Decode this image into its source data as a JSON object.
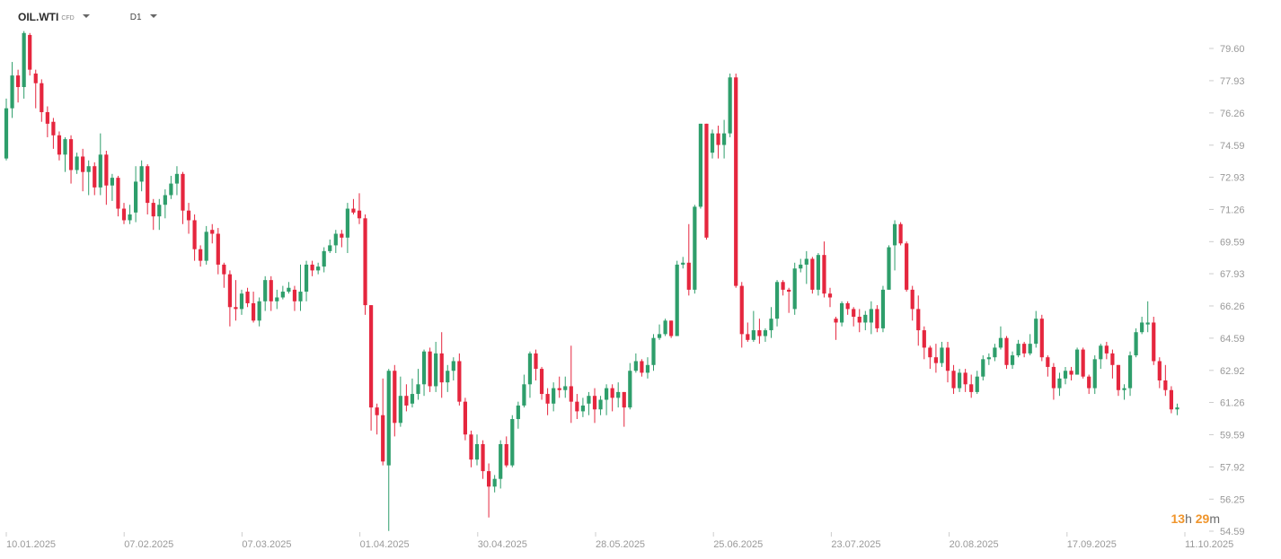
{
  "header": {
    "symbol": "OIL.WTI",
    "symbol_type": "CFD",
    "timeframe": "D1"
  },
  "countdown": {
    "hours": "13",
    "hours_unit": "h",
    "minutes": "29",
    "minutes_unit": "m"
  },
  "colors": {
    "up": "#2e9e6b",
    "down": "#e5263e",
    "axis_text": "#999999"
  },
  "chart_data": {
    "type": "candlestick",
    "y_ticks": [
      "79.60",
      "77.93",
      "76.26",
      "74.59",
      "72.93",
      "71.26",
      "69.59",
      "67.93",
      "66.26",
      "64.59",
      "62.92",
      "61.26",
      "59.59",
      "57.92",
      "56.25",
      "54.59"
    ],
    "x_ticks": [
      "10.01.2025",
      "07.02.2025",
      "07.03.2025",
      "01.04.2025",
      "30.04.2025",
      "28.05.2025",
      "25.06.2025",
      "23.07.2025",
      "20.08.2025",
      "17.09.2025",
      "11.10.2025"
    ],
    "ylim": [
      54.59,
      79.6
    ],
    "candles": [
      [
        73.9,
        76.5,
        73.8,
        77.0
      ],
      [
        76.5,
        78.2,
        76.0,
        78.9
      ],
      [
        78.2,
        77.6,
        76.8,
        78.5
      ],
      [
        77.6,
        80.4,
        77.0,
        80.5
      ],
      [
        80.3,
        78.5,
        78.2,
        80.4
      ],
      [
        78.3,
        77.8,
        76.5,
        78.5
      ],
      [
        77.8,
        76.3,
        75.8,
        78.0
      ],
      [
        76.3,
        75.7,
        75.0,
        76.6
      ],
      [
        75.8,
        75.1,
        74.4,
        76.0
      ],
      [
        75.1,
        74.1,
        73.8,
        75.3
      ],
      [
        74.1,
        74.9,
        73.2,
        75.0
      ],
      [
        74.9,
        73.3,
        72.6,
        75.1
      ],
      [
        73.3,
        74.0,
        73.1,
        74.2
      ],
      [
        74.0,
        73.2,
        72.2,
        74.4
      ],
      [
        73.2,
        73.5,
        72.0,
        73.8
      ],
      [
        73.5,
        72.4,
        72.0,
        73.7
      ],
      [
        72.4,
        74.1,
        72.0,
        75.2
      ],
      [
        74.1,
        72.5,
        71.5,
        74.3
      ],
      [
        72.5,
        72.9,
        71.7,
        73.1
      ],
      [
        72.9,
        71.3,
        70.9,
        73.0
      ],
      [
        71.3,
        70.7,
        70.5,
        71.6
      ],
      [
        70.7,
        71.0,
        70.5,
        71.5
      ],
      [
        71.1,
        72.7,
        70.6,
        73.5
      ],
      [
        72.7,
        73.5,
        72.2,
        73.8
      ],
      [
        73.5,
        71.6,
        71.0,
        73.6
      ],
      [
        71.6,
        70.9,
        70.2,
        71.8
      ],
      [
        70.9,
        71.5,
        70.2,
        71.8
      ],
      [
        71.5,
        72.0,
        70.8,
        72.3
      ],
      [
        72.0,
        72.6,
        71.8,
        73.0
      ],
      [
        72.6,
        73.1,
        72.0,
        73.5
      ],
      [
        73.1,
        71.2,
        70.5,
        73.2
      ],
      [
        71.2,
        70.7,
        70.0,
        71.6
      ],
      [
        70.7,
        69.2,
        68.6,
        71.0
      ],
      [
        69.2,
        68.6,
        68.3,
        69.4
      ],
      [
        68.6,
        70.1,
        68.4,
        70.4
      ],
      [
        70.2,
        70.0,
        69.5,
        70.5
      ],
      [
        70.0,
        68.4,
        67.9,
        70.3
      ],
      [
        68.4,
        67.9,
        67.2,
        68.5
      ],
      [
        67.9,
        66.2,
        65.2,
        68.1
      ],
      [
        66.2,
        66.1,
        65.5,
        67.6
      ],
      [
        66.1,
        66.9,
        65.8,
        67.1
      ],
      [
        67.0,
        66.4,
        66.2,
        67.2
      ],
      [
        66.4,
        65.5,
        65.4,
        67.0
      ],
      [
        65.5,
        66.5,
        65.2,
        66.7
      ],
      [
        66.5,
        67.6,
        66.0,
        67.8
      ],
      [
        67.6,
        66.5,
        66.0,
        67.8
      ],
      [
        66.5,
        66.7,
        66.1,
        67.1
      ],
      [
        66.7,
        67.0,
        66.6,
        67.3
      ],
      [
        67.0,
        67.2,
        66.9,
        67.5
      ],
      [
        67.1,
        66.5,
        66.0,
        67.3
      ],
      [
        66.5,
        67.0,
        66.0,
        68.4
      ],
      [
        67.0,
        68.4,
        66.5,
        68.6
      ],
      [
        68.4,
        68.1,
        67.8,
        68.6
      ],
      [
        68.1,
        68.3,
        67.9,
        68.5
      ],
      [
        68.3,
        69.1,
        68.0,
        69.3
      ],
      [
        69.1,
        69.4,
        69.0,
        69.7
      ],
      [
        69.4,
        70.0,
        69.0,
        70.2
      ],
      [
        70.0,
        69.8,
        69.3,
        70.2
      ],
      [
        69.8,
        71.3,
        69.0,
        71.6
      ],
      [
        71.3,
        71.1,
        71.0,
        71.8
      ],
      [
        71.2,
        70.8,
        70.5,
        72.1
      ],
      [
        70.8,
        66.3,
        65.8,
        71.0
      ],
      [
        66.3,
        61.0,
        59.8,
        66.3
      ],
      [
        61.0,
        60.6,
        59.6,
        61.2
      ],
      [
        60.6,
        58.2,
        58.0,
        62.5
      ],
      [
        58.0,
        62.9,
        54.6,
        63.0
      ],
      [
        62.9,
        60.2,
        59.5,
        63.2
      ],
      [
        60.2,
        61.6,
        60.0,
        62.6
      ],
      [
        61.6,
        61.1,
        60.8,
        62.2
      ],
      [
        61.2,
        61.7,
        61.0,
        62.5
      ],
      [
        61.7,
        62.2,
        61.4,
        63.0
      ],
      [
        62.2,
        63.9,
        61.6,
        64.0
      ],
      [
        63.9,
        62.1,
        61.8,
        64.1
      ],
      [
        62.1,
        63.8,
        61.8,
        64.4
      ],
      [
        63.8,
        62.3,
        61.5,
        64.9
      ],
      [
        62.3,
        62.9,
        61.8,
        63.2
      ],
      [
        62.9,
        63.4,
        62.4,
        63.6
      ],
      [
        63.4,
        61.3,
        61.1,
        63.8
      ],
      [
        61.3,
        59.6,
        59.3,
        61.5
      ],
      [
        59.6,
        58.3,
        57.9,
        59.8
      ],
      [
        58.3,
        59.1,
        58.0,
        59.6
      ],
      [
        59.1,
        57.7,
        57.3,
        59.3
      ],
      [
        57.7,
        56.9,
        55.3,
        58.1
      ],
      [
        56.9,
        57.3,
        56.6,
        57.5
      ],
      [
        57.3,
        59.1,
        56.8,
        59.3
      ],
      [
        59.1,
        58.0,
        57.9,
        59.5
      ],
      [
        58.0,
        60.4,
        57.9,
        60.6
      ],
      [
        60.4,
        61.1,
        59.9,
        61.3
      ],
      [
        61.1,
        62.2,
        61.0,
        62.7
      ],
      [
        62.2,
        63.8,
        61.5,
        63.9
      ],
      [
        63.8,
        63.0,
        62.4,
        64.0
      ],
      [
        63.0,
        61.7,
        61.4,
        63.1
      ],
      [
        61.7,
        61.2,
        60.6,
        62.0
      ],
      [
        61.2,
        62.0,
        60.8,
        62.3
      ],
      [
        62.0,
        61.9,
        61.5,
        62.6
      ],
      [
        61.9,
        62.1,
        61.5,
        62.6
      ],
      [
        62.1,
        61.3,
        60.2,
        64.2
      ],
      [
        61.3,
        60.8,
        60.4,
        61.7
      ],
      [
        60.8,
        61.1,
        60.5,
        61.5
      ],
      [
        61.2,
        61.6,
        60.6,
        61.8
      ],
      [
        61.6,
        60.9,
        60.2,
        62.0
      ],
      [
        60.9,
        61.4,
        60.6,
        61.6
      ],
      [
        61.4,
        62.0,
        60.6,
        62.2
      ],
      [
        62.0,
        61.5,
        60.8,
        62.2
      ],
      [
        61.5,
        61.8,
        61.0,
        62.3
      ],
      [
        61.8,
        61.0,
        60.0,
        61.8
      ],
      [
        61.0,
        62.9,
        60.9,
        63.3
      ],
      [
        62.9,
        63.4,
        62.8,
        63.8
      ],
      [
        63.4,
        62.8,
        62.6,
        63.5
      ],
      [
        62.8,
        63.2,
        62.5,
        63.6
      ],
      [
        63.2,
        64.6,
        62.9,
        64.8
      ],
      [
        64.6,
        64.8,
        64.5,
        65.3
      ],
      [
        64.8,
        65.5,
        64.7,
        65.6
      ],
      [
        65.5,
        64.7,
        64.6,
        65.5
      ],
      [
        64.7,
        68.4,
        64.7,
        68.6
      ],
      [
        68.4,
        68.5,
        68.2,
        68.8
      ],
      [
        68.5,
        67.1,
        66.8,
        70.5
      ],
      [
        67.1,
        71.4,
        66.9,
        71.5
      ],
      [
        71.4,
        75.7,
        71.3,
        75.7
      ],
      [
        75.7,
        69.8,
        69.7,
        75.7
      ],
      [
        74.2,
        75.2,
        73.9,
        75.4
      ],
      [
        75.2,
        74.6,
        73.9,
        75.6
      ],
      [
        74.6,
        75.2,
        73.9,
        75.9
      ],
      [
        75.2,
        78.1,
        75.0,
        78.3
      ],
      [
        78.1,
        67.3,
        67.2,
        78.3
      ],
      [
        67.3,
        64.8,
        64.1,
        67.5
      ],
      [
        64.8,
        64.5,
        64.4,
        65.4
      ],
      [
        64.5,
        65.0,
        64.4,
        66.0
      ],
      [
        65.0,
        64.7,
        64.3,
        65.6
      ],
      [
        64.7,
        65.0,
        64.4,
        65.1
      ],
      [
        65.0,
        65.6,
        64.6,
        66.2
      ],
      [
        65.6,
        67.5,
        65.2,
        67.6
      ],
      [
        67.5,
        67.1,
        66.8,
        67.6
      ],
      [
        67.1,
        67.0,
        65.9,
        67.2
      ],
      [
        66.1,
        68.2,
        65.8,
        68.5
      ],
      [
        68.2,
        68.4,
        68.0,
        68.7
      ],
      [
        68.4,
        68.7,
        67.4,
        69.1
      ],
      [
        68.7,
        67.1,
        66.9,
        68.8
      ],
      [
        67.1,
        68.9,
        66.8,
        69.0
      ],
      [
        68.9,
        66.9,
        66.7,
        69.6
      ],
      [
        66.9,
        66.7,
        66.2,
        67.2
      ],
      [
        65.6,
        65.4,
        64.5,
        65.7
      ],
      [
        65.4,
        66.4,
        65.2,
        66.5
      ],
      [
        66.4,
        66.1,
        65.8,
        66.5
      ],
      [
        66.1,
        65.7,
        65.2,
        66.2
      ],
      [
        65.7,
        65.4,
        64.9,
        66.1
      ],
      [
        65.4,
        65.8,
        65.0,
        66.0
      ],
      [
        65.4,
        66.1,
        64.8,
        66.5
      ],
      [
        66.1,
        65.1,
        64.9,
        66.3
      ],
      [
        65.1,
        67.1,
        64.9,
        67.3
      ],
      [
        67.1,
        69.3,
        67.1,
        69.4
      ],
      [
        69.4,
        70.5,
        68.1,
        70.7
      ],
      [
        70.5,
        69.5,
        69.4,
        70.6
      ],
      [
        69.5,
        67.1,
        67.0,
        69.6
      ],
      [
        67.1,
        66.1,
        65.5,
        67.3
      ],
      [
        66.1,
        65.0,
        64.2,
        66.8
      ],
      [
        65.0,
        64.1,
        63.5,
        65.2
      ],
      [
        64.1,
        63.6,
        63.0,
        64.2
      ],
      [
        63.6,
        63.3,
        62.8,
        64.3
      ],
      [
        63.3,
        64.1,
        63.1,
        64.4
      ],
      [
        64.1,
        62.9,
        62.3,
        64.4
      ],
      [
        62.9,
        62.0,
        61.7,
        63.2
      ],
      [
        62.0,
        62.8,
        61.8,
        63.0
      ],
      [
        62.8,
        62.2,
        61.8,
        63.0
      ],
      [
        62.2,
        61.8,
        61.5,
        62.7
      ],
      [
        61.8,
        62.6,
        61.7,
        62.9
      ],
      [
        62.6,
        63.5,
        62.4,
        63.7
      ],
      [
        63.5,
        63.6,
        63.2,
        63.8
      ],
      [
        63.6,
        64.1,
        63.4,
        64.3
      ],
      [
        64.1,
        64.6,
        64.0,
        65.2
      ],
      [
        64.6,
        63.2,
        63.0,
        64.7
      ],
      [
        63.2,
        63.7,
        63.0,
        63.9
      ],
      [
        63.7,
        64.3,
        63.6,
        64.5
      ],
      [
        64.3,
        63.8,
        63.6,
        64.4
      ],
      [
        63.8,
        64.3,
        63.7,
        64.8
      ],
      [
        64.3,
        65.6,
        64.1,
        66.0
      ],
      [
        65.6,
        63.6,
        63.4,
        65.8
      ],
      [
        63.6,
        63.1,
        62.6,
        63.7
      ],
      [
        63.1,
        62.0,
        61.4,
        63.3
      ],
      [
        62.0,
        62.5,
        61.6,
        62.8
      ],
      [
        62.5,
        62.9,
        62.2,
        63.1
      ],
      [
        62.9,
        62.7,
        62.4,
        63.1
      ],
      [
        62.7,
        64.0,
        62.7,
        64.1
      ],
      [
        64.0,
        62.6,
        62.5,
        64.1
      ],
      [
        62.6,
        62.0,
        61.7,
        62.7
      ],
      [
        62.0,
        63.5,
        61.7,
        63.7
      ],
      [
        63.5,
        64.2,
        63.0,
        64.3
      ],
      [
        64.2,
        63.8,
        63.5,
        64.4
      ],
      [
        63.8,
        63.2,
        62.5,
        64.0
      ],
      [
        63.2,
        61.9,
        61.6,
        63.2
      ],
      [
        61.9,
        62.0,
        61.4,
        62.2
      ],
      [
        62.0,
        63.7,
        61.6,
        63.9
      ],
      [
        63.7,
        64.9,
        63.6,
        65.1
      ],
      [
        64.9,
        65.4,
        64.8,
        65.7
      ],
      [
        65.3,
        65.4,
        64.9,
        66.5
      ],
      [
        65.4,
        63.4,
        63.2,
        65.7
      ],
      [
        63.4,
        62.4,
        62.0,
        63.6
      ],
      [
        62.4,
        61.9,
        61.6,
        63.2
      ],
      [
        61.9,
        60.9,
        60.7,
        62.1
      ],
      [
        60.9,
        61.0,
        60.6,
        61.2
      ]
    ]
  }
}
